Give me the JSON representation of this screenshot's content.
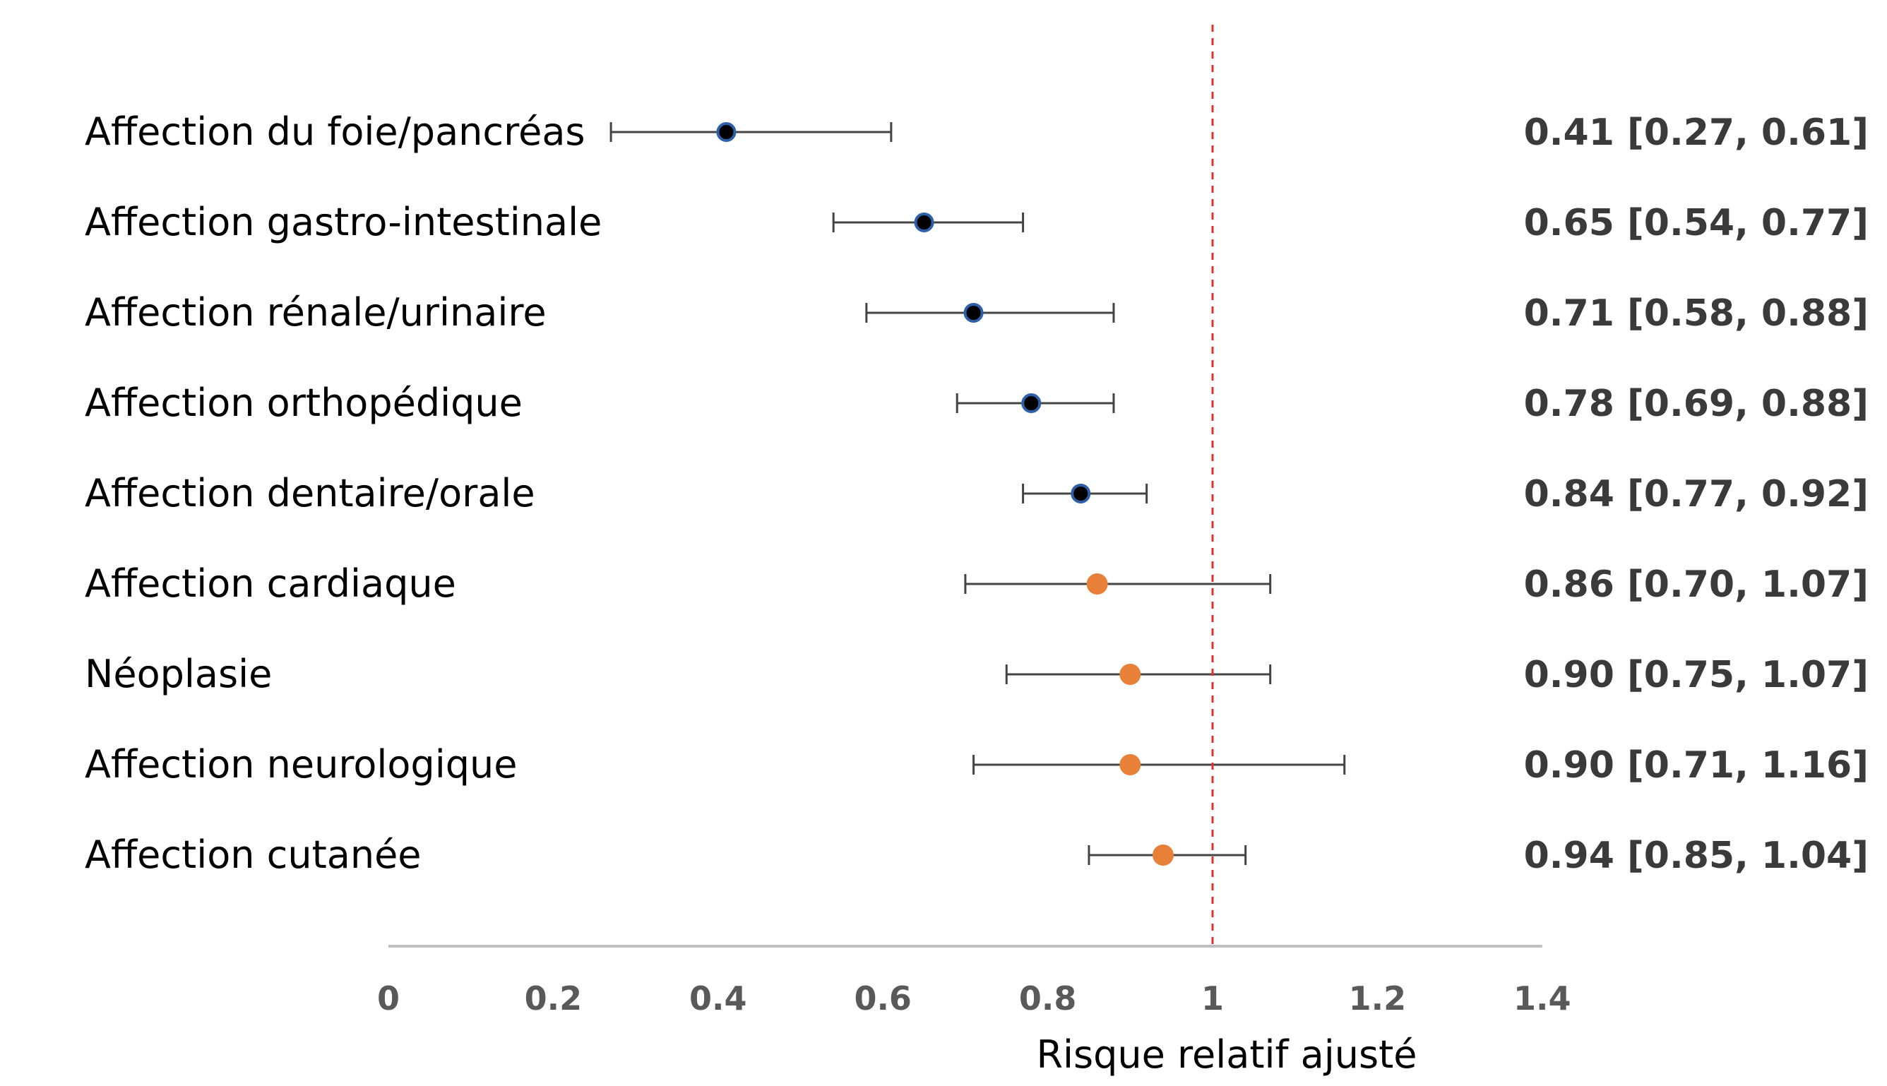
{
  "chart_data": {
    "type": "scatter",
    "xlabel": "Risque relatif ajusté",
    "xlim": [
      0,
      1.4
    ],
    "x_ticks": [
      "0",
      "0.2",
      "0.4",
      "0.6",
      "0.8",
      "1",
      "1.2",
      "1.4"
    ],
    "reference_line": 1,
    "grid": false,
    "colors": {
      "significant": "#000000",
      "significant_edge": "#2e5fa8",
      "not_significant": "#e8803a",
      "reference": "#e03030",
      "whisker": "#444444",
      "axis": "#bfbfbf"
    },
    "rows": [
      {
        "label": "Affection du foie/pancréas",
        "estimate": 0.41,
        "lower": 0.27,
        "upper": 0.61,
        "text": "0.41 [0.27, 0.61]",
        "significant": true
      },
      {
        "label": "Affection gastro-intestinale",
        "estimate": 0.65,
        "lower": 0.54,
        "upper": 0.77,
        "text": "0.65 [0.54, 0.77]",
        "significant": true
      },
      {
        "label": "Affection rénale/urinaire",
        "estimate": 0.71,
        "lower": 0.58,
        "upper": 0.88,
        "text": "0.71 [0.58, 0.88]",
        "significant": true
      },
      {
        "label": "Affection orthopédique",
        "estimate": 0.78,
        "lower": 0.69,
        "upper": 0.88,
        "text": "0.78 [0.69, 0.88]",
        "significant": true
      },
      {
        "label": "Affection dentaire/orale",
        "estimate": 0.84,
        "lower": 0.77,
        "upper": 0.92,
        "text": "0.84 [0.77, 0.92]",
        "significant": true
      },
      {
        "label": "Affection cardiaque",
        "estimate": 0.86,
        "lower": 0.7,
        "upper": 1.07,
        "text": "0.86 [0.70, 1.07]",
        "significant": false
      },
      {
        "label": "Néoplasie",
        "estimate": 0.9,
        "lower": 0.75,
        "upper": 1.07,
        "text": "0.90 [0.75, 1.07]",
        "significant": false
      },
      {
        "label": "Affection neurologique",
        "estimate": 0.9,
        "lower": 0.71,
        "upper": 1.16,
        "text": "0.90 [0.71, 1.16]",
        "significant": false
      },
      {
        "label": "Affection cutanée",
        "estimate": 0.94,
        "lower": 0.85,
        "upper": 1.04,
        "text": "0.94 [0.85, 1.04]",
        "significant": false
      }
    ]
  }
}
